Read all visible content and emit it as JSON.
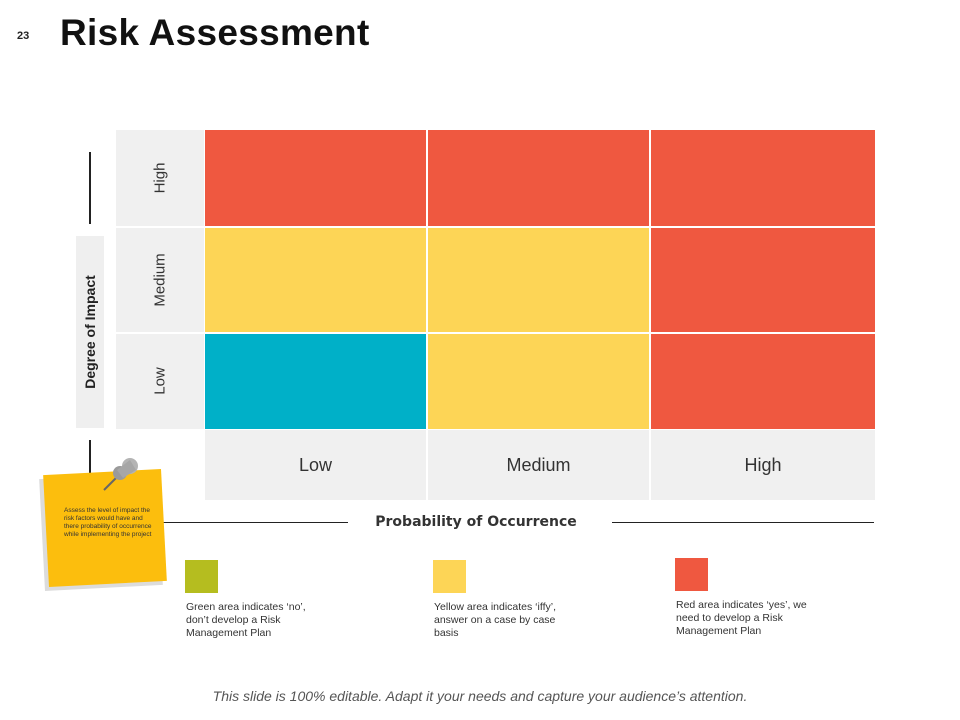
{
  "slide": {
    "number": "23",
    "title": "Risk Assessment"
  },
  "matrix": {
    "y_axis_label": "Degree of Impact",
    "x_axis_label": "Probability  of Occurrence",
    "rows": [
      "High",
      "Medium",
      "Low"
    ],
    "columns": [
      "Low",
      "Medium",
      "High"
    ],
    "cells": [
      [
        "red",
        "red",
        "red"
      ],
      [
        "yellow",
        "yellow",
        "red"
      ],
      [
        "blue",
        "yellow",
        "red"
      ]
    ]
  },
  "note": {
    "text": "Assess the level of impact the risk factors would have and there probability of occurrence while implementing the project"
  },
  "legend": [
    {
      "color": "#b5bd1f",
      "text": "Green area indicates ‘no’, don’t develop a Risk Management Plan"
    },
    {
      "color": "#fdd556",
      "text": "Yellow area indicates ‘iffy’, answer on a case by case basis"
    },
    {
      "color": "#ef5840",
      "text": "Red area indicates ‘yes’, we need to develop a Risk Management Plan"
    }
  ],
  "colors": {
    "red": "#ef5840",
    "yellow": "#fdd556",
    "blue": "#00b0c8",
    "green": "#b5bd1f",
    "sticky": "#fcbe0d"
  },
  "footer": "This slide is 100% editable. Adapt it your needs and capture your audience’s attention."
}
